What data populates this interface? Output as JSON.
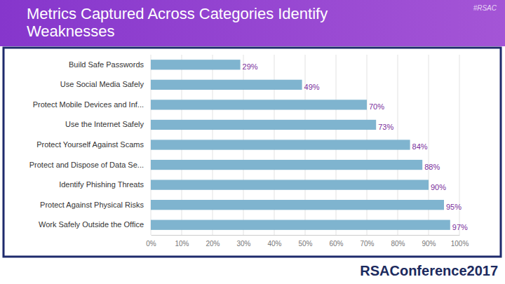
{
  "chart_data": {
    "type": "bar",
    "orientation": "horizontal",
    "title": "Metrics Captured Across Categories Identify Weaknesses",
    "annotations": [
      "#RSAC",
      "RSAConference2017"
    ],
    "categories": [
      "Build Safe Passwords",
      "Use Social Media Safely",
      "Protect Mobile Devices and Inf...",
      "Use the Internet Safely",
      "Protect Yourself Against Scams",
      "Protect and Dispose of Data Se...",
      "Identify Phishing Threats",
      "Protect Against Physical Risks",
      "Work Safely Outside the Office"
    ],
    "values": [
      29,
      49,
      70,
      73,
      84,
      88,
      90,
      95,
      97
    ],
    "value_labels": [
      "29%",
      "49%",
      "70%",
      "73%",
      "84%",
      "88%",
      "90%",
      "95%",
      "97%"
    ],
    "color": "#7fb4cf",
    "xlim": [
      0,
      100
    ],
    "xticks": [
      {
        "value": 0,
        "label": "0%"
      },
      {
        "value": 10,
        "label": "10%"
      },
      {
        "value": 20,
        "label": "20%"
      },
      {
        "value": 30,
        "label": "30%"
      },
      {
        "value": 40,
        "label": "40%"
      },
      {
        "value": 50,
        "label": "50%"
      },
      {
        "value": 60,
        "label": "60%"
      },
      {
        "value": 70,
        "label": "70%"
      },
      {
        "value": 80,
        "label": "80%"
      },
      {
        "value": 90,
        "label": "90%"
      },
      {
        "value": 100,
        "label": "100%"
      }
    ],
    "grid": true,
    "data_labels": true
  }
}
